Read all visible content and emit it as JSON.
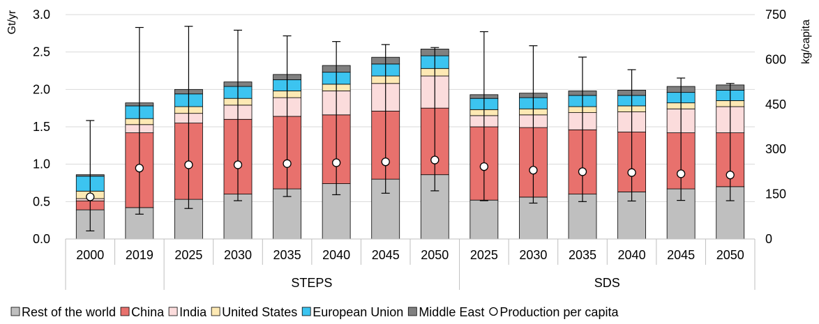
{
  "chart_data": {
    "type": "bar",
    "stacked": true,
    "ylabel": "Gt/yr",
    "y2label": "kg/capita",
    "ylim": [
      0,
      3.0
    ],
    "y2lim": [
      0,
      750
    ],
    "yticks": [
      "0.0",
      "0.5",
      "1.0",
      "1.5",
      "2.0",
      "2.5",
      "3.0"
    ],
    "y2ticks": [
      "0",
      "150",
      "300",
      "450",
      "600",
      "750"
    ],
    "categories": [
      "2000",
      "2019",
      "2025",
      "2030",
      "2035",
      "2040",
      "2045",
      "2050",
      "2025",
      "2030",
      "2035",
      "2040",
      "2045",
      "2050"
    ],
    "groups": [
      {
        "label": "",
        "start": 0,
        "end": 1
      },
      {
        "label": "STEPS",
        "start": 2,
        "end": 7
      },
      {
        "label": "SDS",
        "start": 8,
        "end": 13
      }
    ],
    "series": [
      {
        "name": "Rest of the world",
        "color": "#bfbfbf",
        "values": [
          0.39,
          0.42,
          0.53,
          0.6,
          0.67,
          0.74,
          0.8,
          0.86,
          0.52,
          0.56,
          0.6,
          0.63,
          0.67,
          0.7
        ]
      },
      {
        "name": "China",
        "color": "#e8716d",
        "values": [
          0.12,
          1.0,
          1.02,
          1.0,
          0.97,
          0.92,
          0.91,
          0.89,
          0.98,
          0.93,
          0.86,
          0.8,
          0.75,
          0.72
        ]
      },
      {
        "name": "India",
        "color": "#fbdcdc",
        "values": [
          0.03,
          0.11,
          0.13,
          0.19,
          0.25,
          0.32,
          0.37,
          0.43,
          0.15,
          0.17,
          0.23,
          0.27,
          0.32,
          0.35
        ]
      },
      {
        "name": "United States",
        "color": "#fde9b4",
        "values": [
          0.1,
          0.08,
          0.09,
          0.09,
          0.09,
          0.09,
          0.1,
          0.1,
          0.08,
          0.08,
          0.08,
          0.08,
          0.08,
          0.08
        ]
      },
      {
        "name": "European Union",
        "color": "#3cc4f0",
        "values": [
          0.2,
          0.17,
          0.17,
          0.16,
          0.15,
          0.16,
          0.16,
          0.17,
          0.15,
          0.15,
          0.15,
          0.14,
          0.14,
          0.14
        ]
      },
      {
        "name": "Middle East",
        "color": "#808080",
        "values": [
          0.02,
          0.04,
          0.06,
          0.06,
          0.07,
          0.09,
          0.09,
          0.09,
          0.05,
          0.06,
          0.06,
          0.07,
          0.08,
          0.07
        ]
      }
    ],
    "per_capita": {
      "name": "Production per capita",
      "values": [
        141,
        237,
        248,
        248,
        252,
        255,
        258,
        264,
        242,
        230,
        225,
        222,
        218,
        214
      ],
      "err_low": [
        27,
        83,
        102,
        128,
        142,
        148,
        153,
        161,
        128,
        120,
        125,
        127,
        129,
        128
      ],
      "err_high": [
        396,
        707,
        711,
        698,
        679,
        660,
        650,
        640,
        693,
        646,
        608,
        566,
        538,
        520
      ]
    },
    "legend_position": "bottom"
  }
}
